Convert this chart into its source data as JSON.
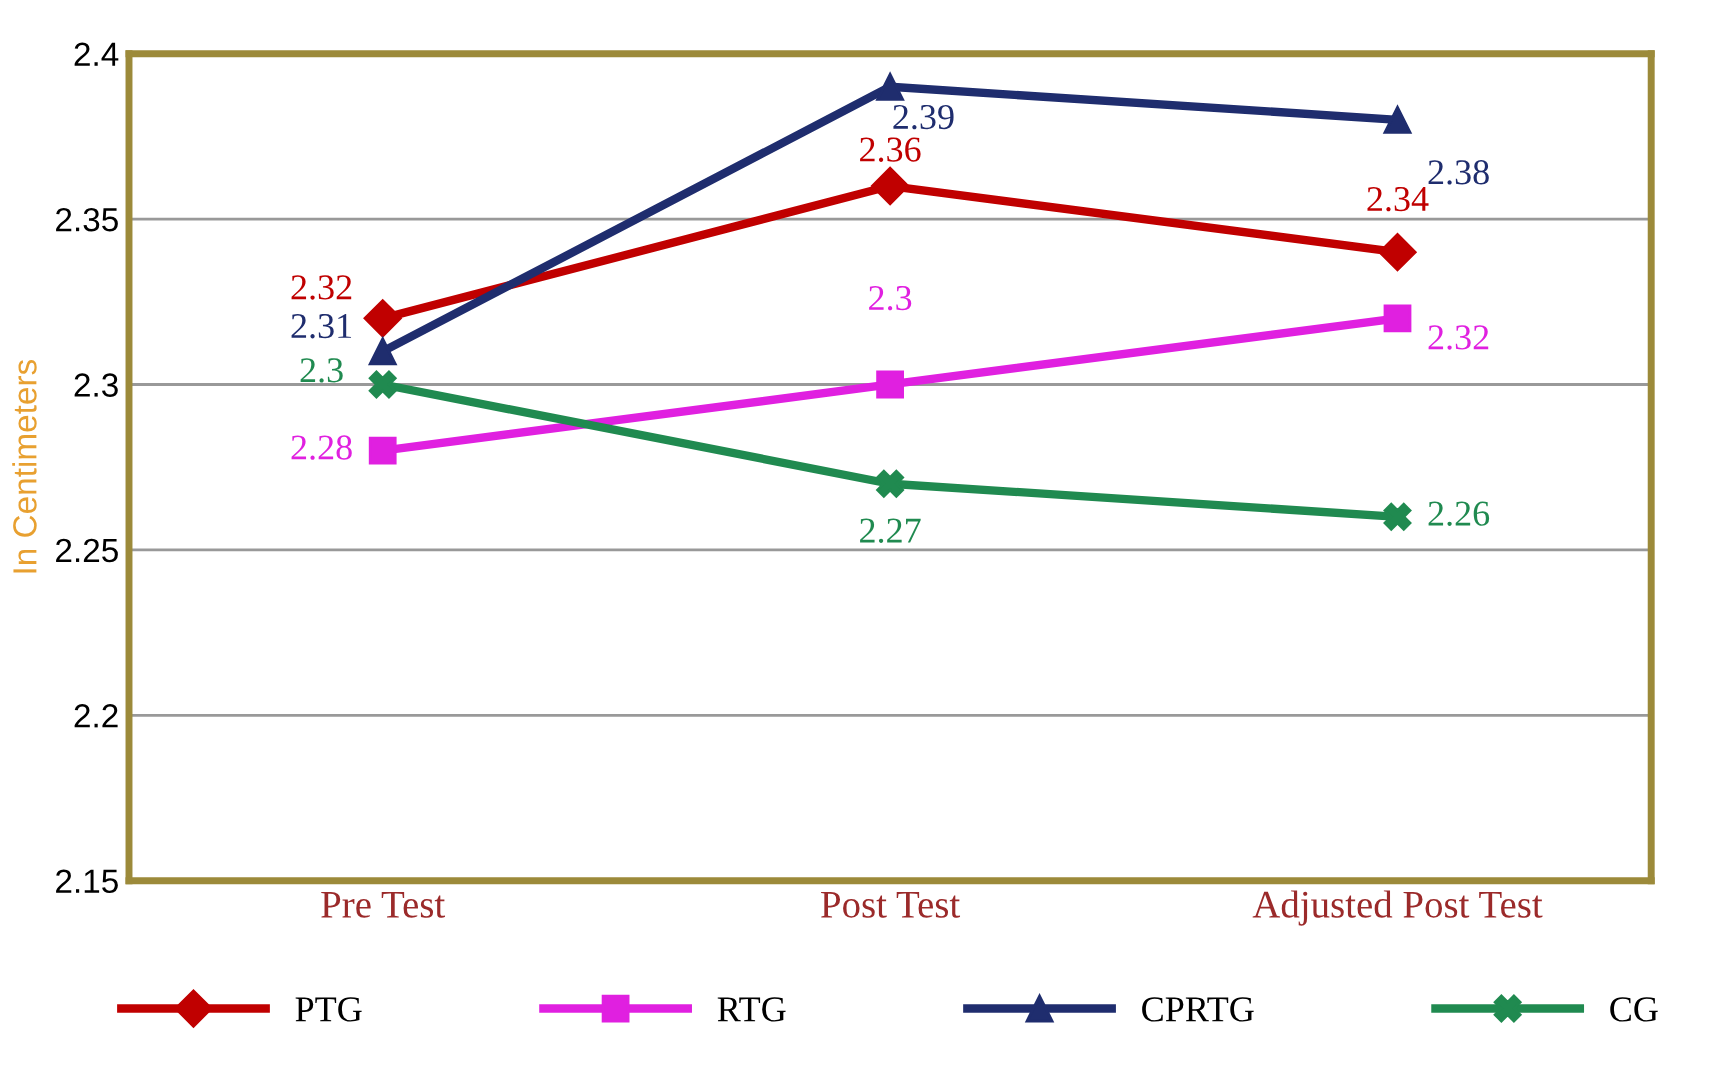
{
  "chart_data": {
    "type": "line",
    "ylabel": "In Centimeters",
    "categories": [
      "Pre Test",
      "Post Test",
      "Adjusted Post Test"
    ],
    "series": [
      {
        "name": "PTG",
        "color": "#c00000",
        "marker": "diamond",
        "values": [
          2.32,
          2.36,
          2.34
        ]
      },
      {
        "name": "RTG",
        "color": "#e020e0",
        "marker": "square",
        "values": [
          2.28,
          2.3,
          2.32
        ]
      },
      {
        "name": "CPRTG",
        "color": "#1f2d6e",
        "marker": "triangle",
        "values": [
          2.31,
          2.39,
          2.38
        ]
      },
      {
        "name": "CG",
        "color": "#208a50",
        "marker": "cross",
        "values": [
          2.3,
          2.27,
          2.26
        ]
      }
    ],
    "ylim": [
      2.15,
      2.4
    ],
    "yticks": [
      2.15,
      2.2,
      2.25,
      2.3,
      2.35,
      2.4
    ],
    "grid": "y",
    "legend": "bottom",
    "data_labels": true,
    "line_style": "solid"
  }
}
